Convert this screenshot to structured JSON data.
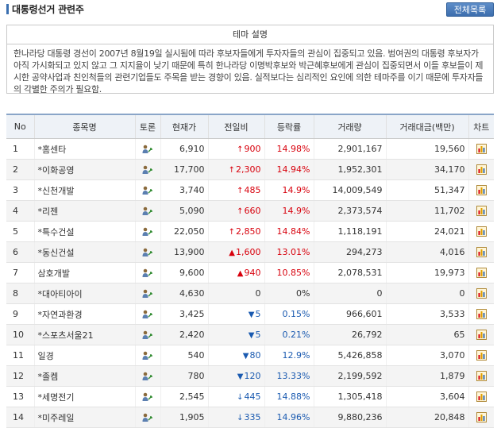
{
  "header": {
    "title": "대통령선거 관련주",
    "all_button": "전체목록"
  },
  "theme": {
    "heading": "테마 설명",
    "description": "한나라당 대통령 경선이 2007년 8월19일 실시됨에 따라 후보자들에게 투자자들의 관심이 집중되고 있음. 범여권의 대통령 후보자가 아직 가시화되고 있지 않고 그 지지율이 낮기 때문에 특히 한나라당 이명박후보와 박근혜후보에게 관심이 집중되면서 이들 후보들이 제시한 공약사업과 친인척들의 관련기업들도 주목을 받는 경향이 있음. 실적보다는 심리적인 요인에 의한 테마주를 이기 때문에 투자자들의 각별한 주의가 필요함."
  },
  "table": {
    "columns": [
      "No",
      "종목명",
      "토론",
      "현재가",
      "전일비",
      "등락률",
      "거래량",
      "거래대금(백만)",
      "차트"
    ],
    "rows": [
      {
        "no": "1",
        "name": "*홈센타",
        "price": "6,910",
        "dir": "up",
        "arrow": "↑",
        "change": "900",
        "rate": "14.98%",
        "volume": "2,901,167",
        "amount": "19,560"
      },
      {
        "no": "2",
        "name": "*이화공영",
        "price": "17,700",
        "dir": "up",
        "arrow": "↑",
        "change": "2,300",
        "rate": "14.94%",
        "volume": "1,952,301",
        "amount": "34,170"
      },
      {
        "no": "3",
        "name": "*신천개발",
        "price": "3,740",
        "dir": "up",
        "arrow": "↑",
        "change": "485",
        "rate": "14.9%",
        "volume": "14,009,549",
        "amount": "51,347"
      },
      {
        "no": "4",
        "name": "*리젠",
        "price": "5,090",
        "dir": "up",
        "arrow": "↑",
        "change": "660",
        "rate": "14.9%",
        "volume": "2,373,574",
        "amount": "11,702"
      },
      {
        "no": "5",
        "name": "*특수건설",
        "price": "22,050",
        "dir": "up",
        "arrow": "↑",
        "change": "2,850",
        "rate": "14.84%",
        "volume": "1,118,191",
        "amount": "24,021"
      },
      {
        "no": "6",
        "name": "*동신건설",
        "price": "13,900",
        "dir": "up",
        "arrow": "▲",
        "change": "1,600",
        "rate": "13.01%",
        "volume": "294,273",
        "amount": "4,016"
      },
      {
        "no": "7",
        "name": "삼호개발",
        "price": "9,600",
        "dir": "up",
        "arrow": "▲",
        "change": "940",
        "rate": "10.85%",
        "volume": "2,078,531",
        "amount": "19,973"
      },
      {
        "no": "8",
        "name": "*대아티아이",
        "price": "4,630",
        "dir": "zero",
        "arrow": "",
        "change": "0",
        "rate": "0%",
        "volume": "0",
        "amount": "0"
      },
      {
        "no": "9",
        "name": "*자연과환경",
        "price": "3,425",
        "dir": "down",
        "arrow": "▼",
        "change": "5",
        "rate": "0.15%",
        "volume": "966,601",
        "amount": "3,533"
      },
      {
        "no": "10",
        "name": "*스포츠서울21",
        "price": "2,420",
        "dir": "down",
        "arrow": "▼",
        "change": "5",
        "rate": "0.21%",
        "volume": "26,792",
        "amount": "65"
      },
      {
        "no": "11",
        "name": "일경",
        "price": "540",
        "dir": "down",
        "arrow": "▼",
        "change": "80",
        "rate": "12.9%",
        "volume": "5,426,858",
        "amount": "3,070"
      },
      {
        "no": "12",
        "name": "*졸켐",
        "price": "780",
        "dir": "down",
        "arrow": "▼",
        "change": "120",
        "rate": "13.33%",
        "volume": "2,199,592",
        "amount": "1,879"
      },
      {
        "no": "13",
        "name": "*세명전기",
        "price": "2,545",
        "dir": "down",
        "arrow": "↓",
        "change": "445",
        "rate": "14.88%",
        "volume": "1,305,418",
        "amount": "3,604"
      },
      {
        "no": "14",
        "name": "*미주레일",
        "price": "1,905",
        "dir": "down",
        "arrow": "↓",
        "change": "335",
        "rate": "14.96%",
        "volume": "9,880,236",
        "amount": "20,848"
      }
    ]
  },
  "icons": {
    "talk": "discussion-icon",
    "chart": "bar-chart-icon"
  },
  "colors": {
    "up": "#d8000c",
    "down": "#1a5ab0",
    "accent": "#3a6fb0"
  }
}
